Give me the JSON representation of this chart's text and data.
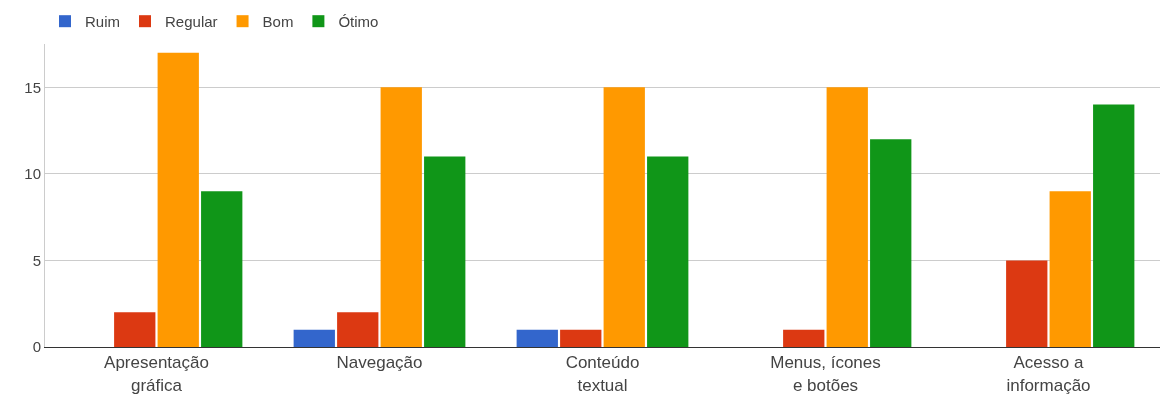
{
  "chart_data": {
    "type": "bar",
    "categories": [
      "Apresentação gráfica",
      "Navegação",
      "Conteúdo textual",
      "Menus, ícones e botões",
      "Acesso a informação"
    ],
    "series": [
      {
        "name": "Ruim",
        "color": "#3366cc",
        "values": [
          0,
          1,
          1,
          0,
          0
        ]
      },
      {
        "name": "Regular",
        "color": "#dc3912",
        "values": [
          2,
          2,
          1,
          1,
          5
        ]
      },
      {
        "name": "Bom",
        "color": "#ff9900",
        "values": [
          17,
          15,
          15,
          15,
          9
        ]
      },
      {
        "name": "Ótimo",
        "color": "#109618",
        "values": [
          9,
          11,
          11,
          12,
          14
        ]
      }
    ],
    "ylim": [
      0,
      17.5
    ],
    "yticks": [
      0,
      5,
      10,
      15
    ],
    "grid": "y",
    "legend": "top left"
  }
}
